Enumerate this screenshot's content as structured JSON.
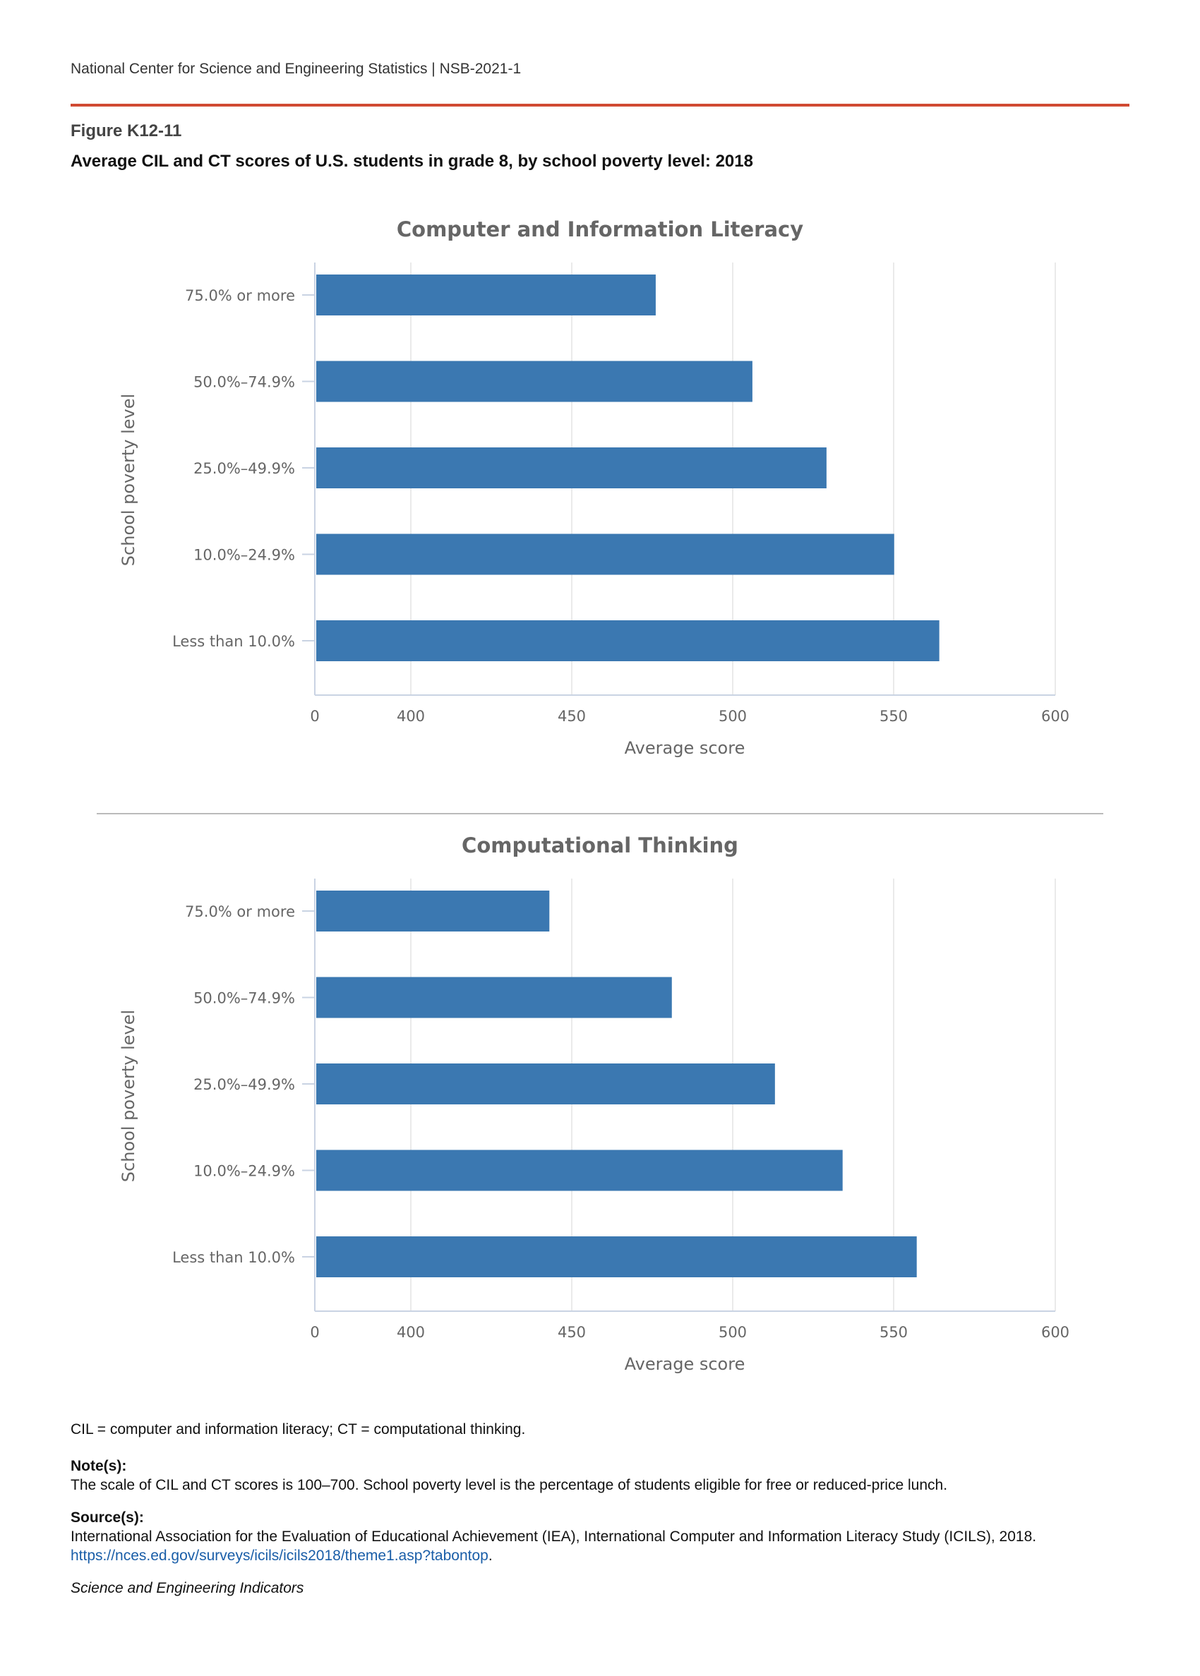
{
  "header": {
    "text": "National Center for Science and Engineering Statistics  |  NSB-2021-1"
  },
  "figure": {
    "label": "Figure K12-11",
    "title": "Average CIL and CT scores of U.S. students in grade 8, by school poverty level: 2018"
  },
  "chart_data": [
    {
      "type": "bar",
      "orientation": "horizontal",
      "title": "Computer and Information Literacy",
      "xlabel": "Average score",
      "ylabel": "School poverty level",
      "categories": [
        "75.0% or more",
        "50.0%–74.9%",
        "25.0%–49.9%",
        "10.0%–24.9%",
        "Less than 10.0%"
      ],
      "values": [
        476,
        506,
        529,
        550,
        564
      ],
      "xticks": [
        "0",
        "400",
        "450",
        "500",
        "550",
        "600"
      ],
      "xlim": [
        370,
        600
      ],
      "axis_break": "0 then 400",
      "grid": true,
      "color": "#3b78b1"
    },
    {
      "type": "bar",
      "orientation": "horizontal",
      "title": "Computational Thinking",
      "xlabel": "Average score",
      "ylabel": "School poverty level",
      "categories": [
        "75.0% or more",
        "50.0%–74.9%",
        "25.0%–49.9%",
        "10.0%–24.9%",
        "Less than 10.0%"
      ],
      "values": [
        443,
        481,
        513,
        534,
        557
      ],
      "xticks": [
        "0",
        "400",
        "450",
        "500",
        "550",
        "600"
      ],
      "xlim": [
        370,
        600
      ],
      "axis_break": "0 then 400",
      "grid": true,
      "color": "#3b78b1"
    }
  ],
  "footer": {
    "abbreviations": "CIL = computer and information literacy; CT = computational thinking.",
    "notes_label": "Note(s):",
    "notes_text": "The scale of CIL and CT scores is 100–700. School poverty level is the percentage of students eligible for free or reduced-price lunch.",
    "sources_label": "Source(s):",
    "sources_text": "International Association for the Evaluation of Educational Achievement (IEA), International Computer and Information Literacy Study (ICILS), 2018.",
    "sources_url": "https://nces.ed.gov/surveys/icils/icils2018/theme1.asp?tabontop",
    "sources_url_suffix": ".",
    "series_name": "Science and Engineering Indicators"
  }
}
